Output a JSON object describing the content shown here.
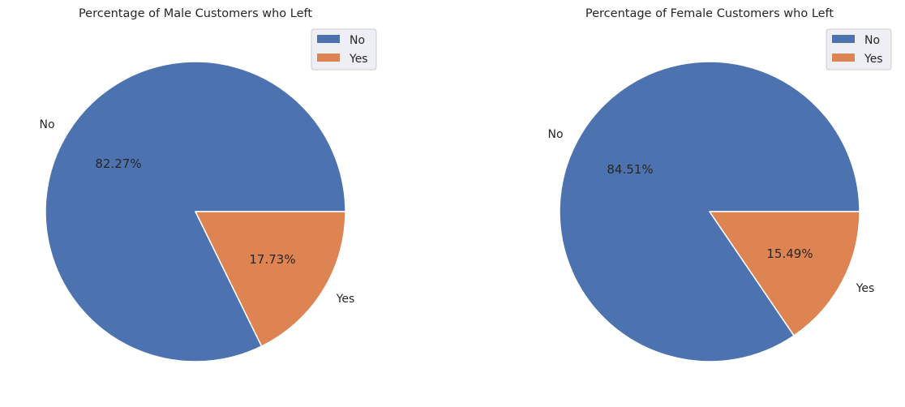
{
  "chart_data": [
    {
      "type": "pie",
      "title": "Percentage of Male Customers who Left",
      "labels": [
        "No",
        "Yes"
      ],
      "values": [
        82.27,
        17.73
      ],
      "value_labels": [
        "82.27%",
        "17.73%"
      ],
      "colors": [
        "#4c72b0",
        "#dd8452"
      ],
      "legend": {
        "entries": [
          "No",
          "Yes"
        ],
        "placement": "top-right"
      }
    },
    {
      "type": "pie",
      "title": "Percentage of Female Customers who Left",
      "labels": [
        "No",
        "Yes"
      ],
      "values": [
        84.51,
        15.49
      ],
      "value_labels": [
        "84.51%",
        "15.49%"
      ],
      "colors": [
        "#4c72b0",
        "#dd8452"
      ],
      "legend": {
        "entries": [
          "No",
          "Yes"
        ],
        "placement": "top-right"
      }
    }
  ]
}
